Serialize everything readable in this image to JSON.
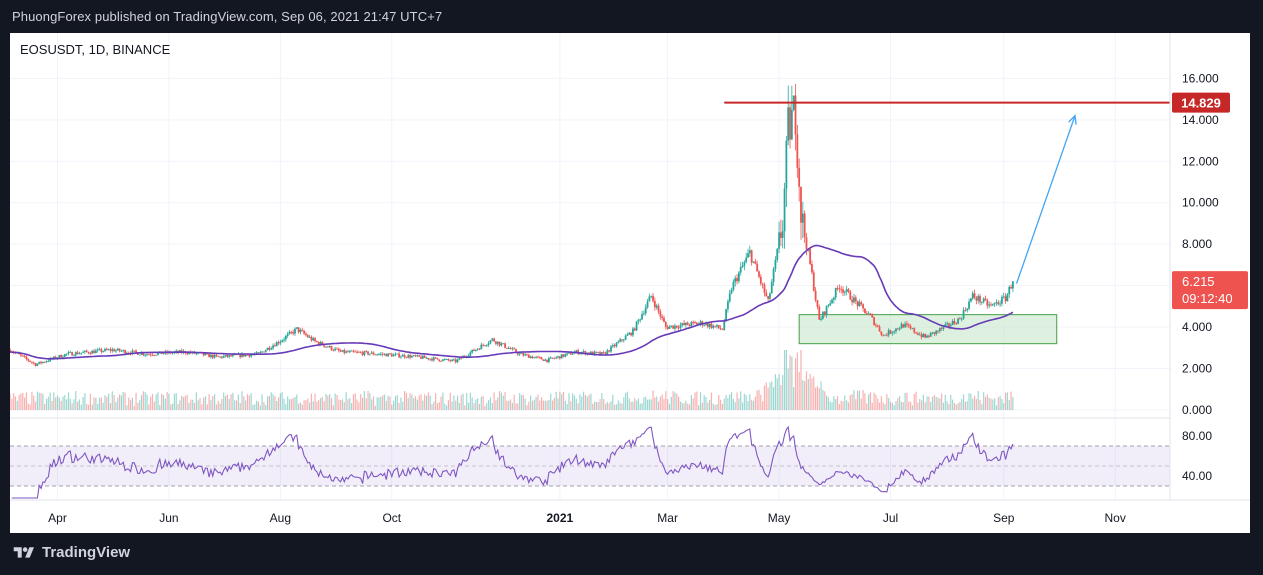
{
  "header": {
    "publisher_line": "PhuongForex published on TradingView.com, Sep 06, 2021 21:47 UTC+7"
  },
  "footer": {
    "brand": "TradingView",
    "logo_icon": "tradingview-logo-icon"
  },
  "colors": {
    "background": "#131722",
    "up": "#26a69a",
    "down": "#ef5350",
    "ma": "#673ab7",
    "rsi": "#7e57c2",
    "resistance": "#c62828",
    "support_fill": "#c8e6c9",
    "support_border": "#43a047",
    "arrow": "#42a5f5"
  },
  "chart_data": {
    "type": "candlestick",
    "symbol_line": "EOSUSDT, 1D, BINANCE",
    "x_tick_labels": [
      "Apr",
      "Jun",
      "Aug",
      "Oct",
      "2021",
      "Mar",
      "May",
      "Jul",
      "Sep",
      "Nov"
    ],
    "price_ticks": [
      "16.000",
      "14.000",
      "12.000",
      "10.000",
      "8.000",
      "6.000",
      "4.000",
      "2.000",
      "0.000"
    ],
    "ylim": [
      0,
      16.5
    ],
    "rsi_ticks": [
      "80.00",
      "40.00"
    ],
    "rsi_bands": [
      70,
      30
    ],
    "rsi_mid": 50,
    "price_badge": {
      "value": "6.215",
      "countdown": "09:12:40"
    },
    "resistance_badge": "14.829",
    "resistance_level": 14.829,
    "support_zone": {
      "low": 3.2,
      "high": 4.6,
      "start": "2021-05-12",
      "end": "2021-09-30"
    },
    "projection_arrow": {
      "from_date": "2021-09-08",
      "from_price": 6.1,
      "to_date": "2021-10-10",
      "to_price": 14.2
    },
    "close_anchors": [
      [
        "2020-03-06",
        2.9
      ],
      [
        "2020-03-20",
        2.2
      ],
      [
        "2020-04-06",
        2.7
      ],
      [
        "2020-05-01",
        2.9
      ],
      [
        "2020-05-20",
        2.7
      ],
      [
        "2020-06-10",
        2.8
      ],
      [
        "2020-06-28",
        2.55
      ],
      [
        "2020-07-20",
        2.7
      ],
      [
        "2020-08-02",
        3.4
      ],
      [
        "2020-08-10",
        3.9
      ],
      [
        "2020-08-20",
        3.3
      ],
      [
        "2020-09-03",
        2.8
      ],
      [
        "2020-09-15",
        2.75
      ],
      [
        "2020-10-10",
        2.6
      ],
      [
        "2020-11-05",
        2.35
      ],
      [
        "2020-11-25",
        3.4
      ],
      [
        "2020-12-10",
        2.7
      ],
      [
        "2020-12-25",
        2.4
      ],
      [
        "2021-01-10",
        2.8
      ],
      [
        "2021-01-25",
        2.7
      ],
      [
        "2021-02-10",
        3.8
      ],
      [
        "2021-02-20",
        5.5
      ],
      [
        "2021-02-28",
        4.0
      ],
      [
        "2021-03-20",
        4.2
      ],
      [
        "2021-03-31",
        3.9
      ],
      [
        "2021-04-05",
        5.9
      ],
      [
        "2021-04-15",
        7.6
      ],
      [
        "2021-04-25",
        5.2
      ],
      [
        "2021-05-03",
        9.0
      ],
      [
        "2021-05-06",
        13.5
      ],
      [
        "2021-05-10",
        14.5
      ],
      [
        "2021-05-13",
        9.5
      ],
      [
        "2021-05-19",
        6.5
      ],
      [
        "2021-05-23",
        4.3
      ],
      [
        "2021-06-03",
        6.0
      ],
      [
        "2021-06-20",
        4.5
      ],
      [
        "2021-06-27",
        3.6
      ],
      [
        "2021-07-08",
        4.1
      ],
      [
        "2021-07-20",
        3.5
      ],
      [
        "2021-07-31",
        4.0
      ],
      [
        "2021-08-08",
        4.4
      ],
      [
        "2021-08-15",
        5.5
      ],
      [
        "2021-08-25",
        5.0
      ],
      [
        "2021-09-02",
        5.4
      ],
      [
        "2021-09-06",
        6.215
      ]
    ]
  }
}
